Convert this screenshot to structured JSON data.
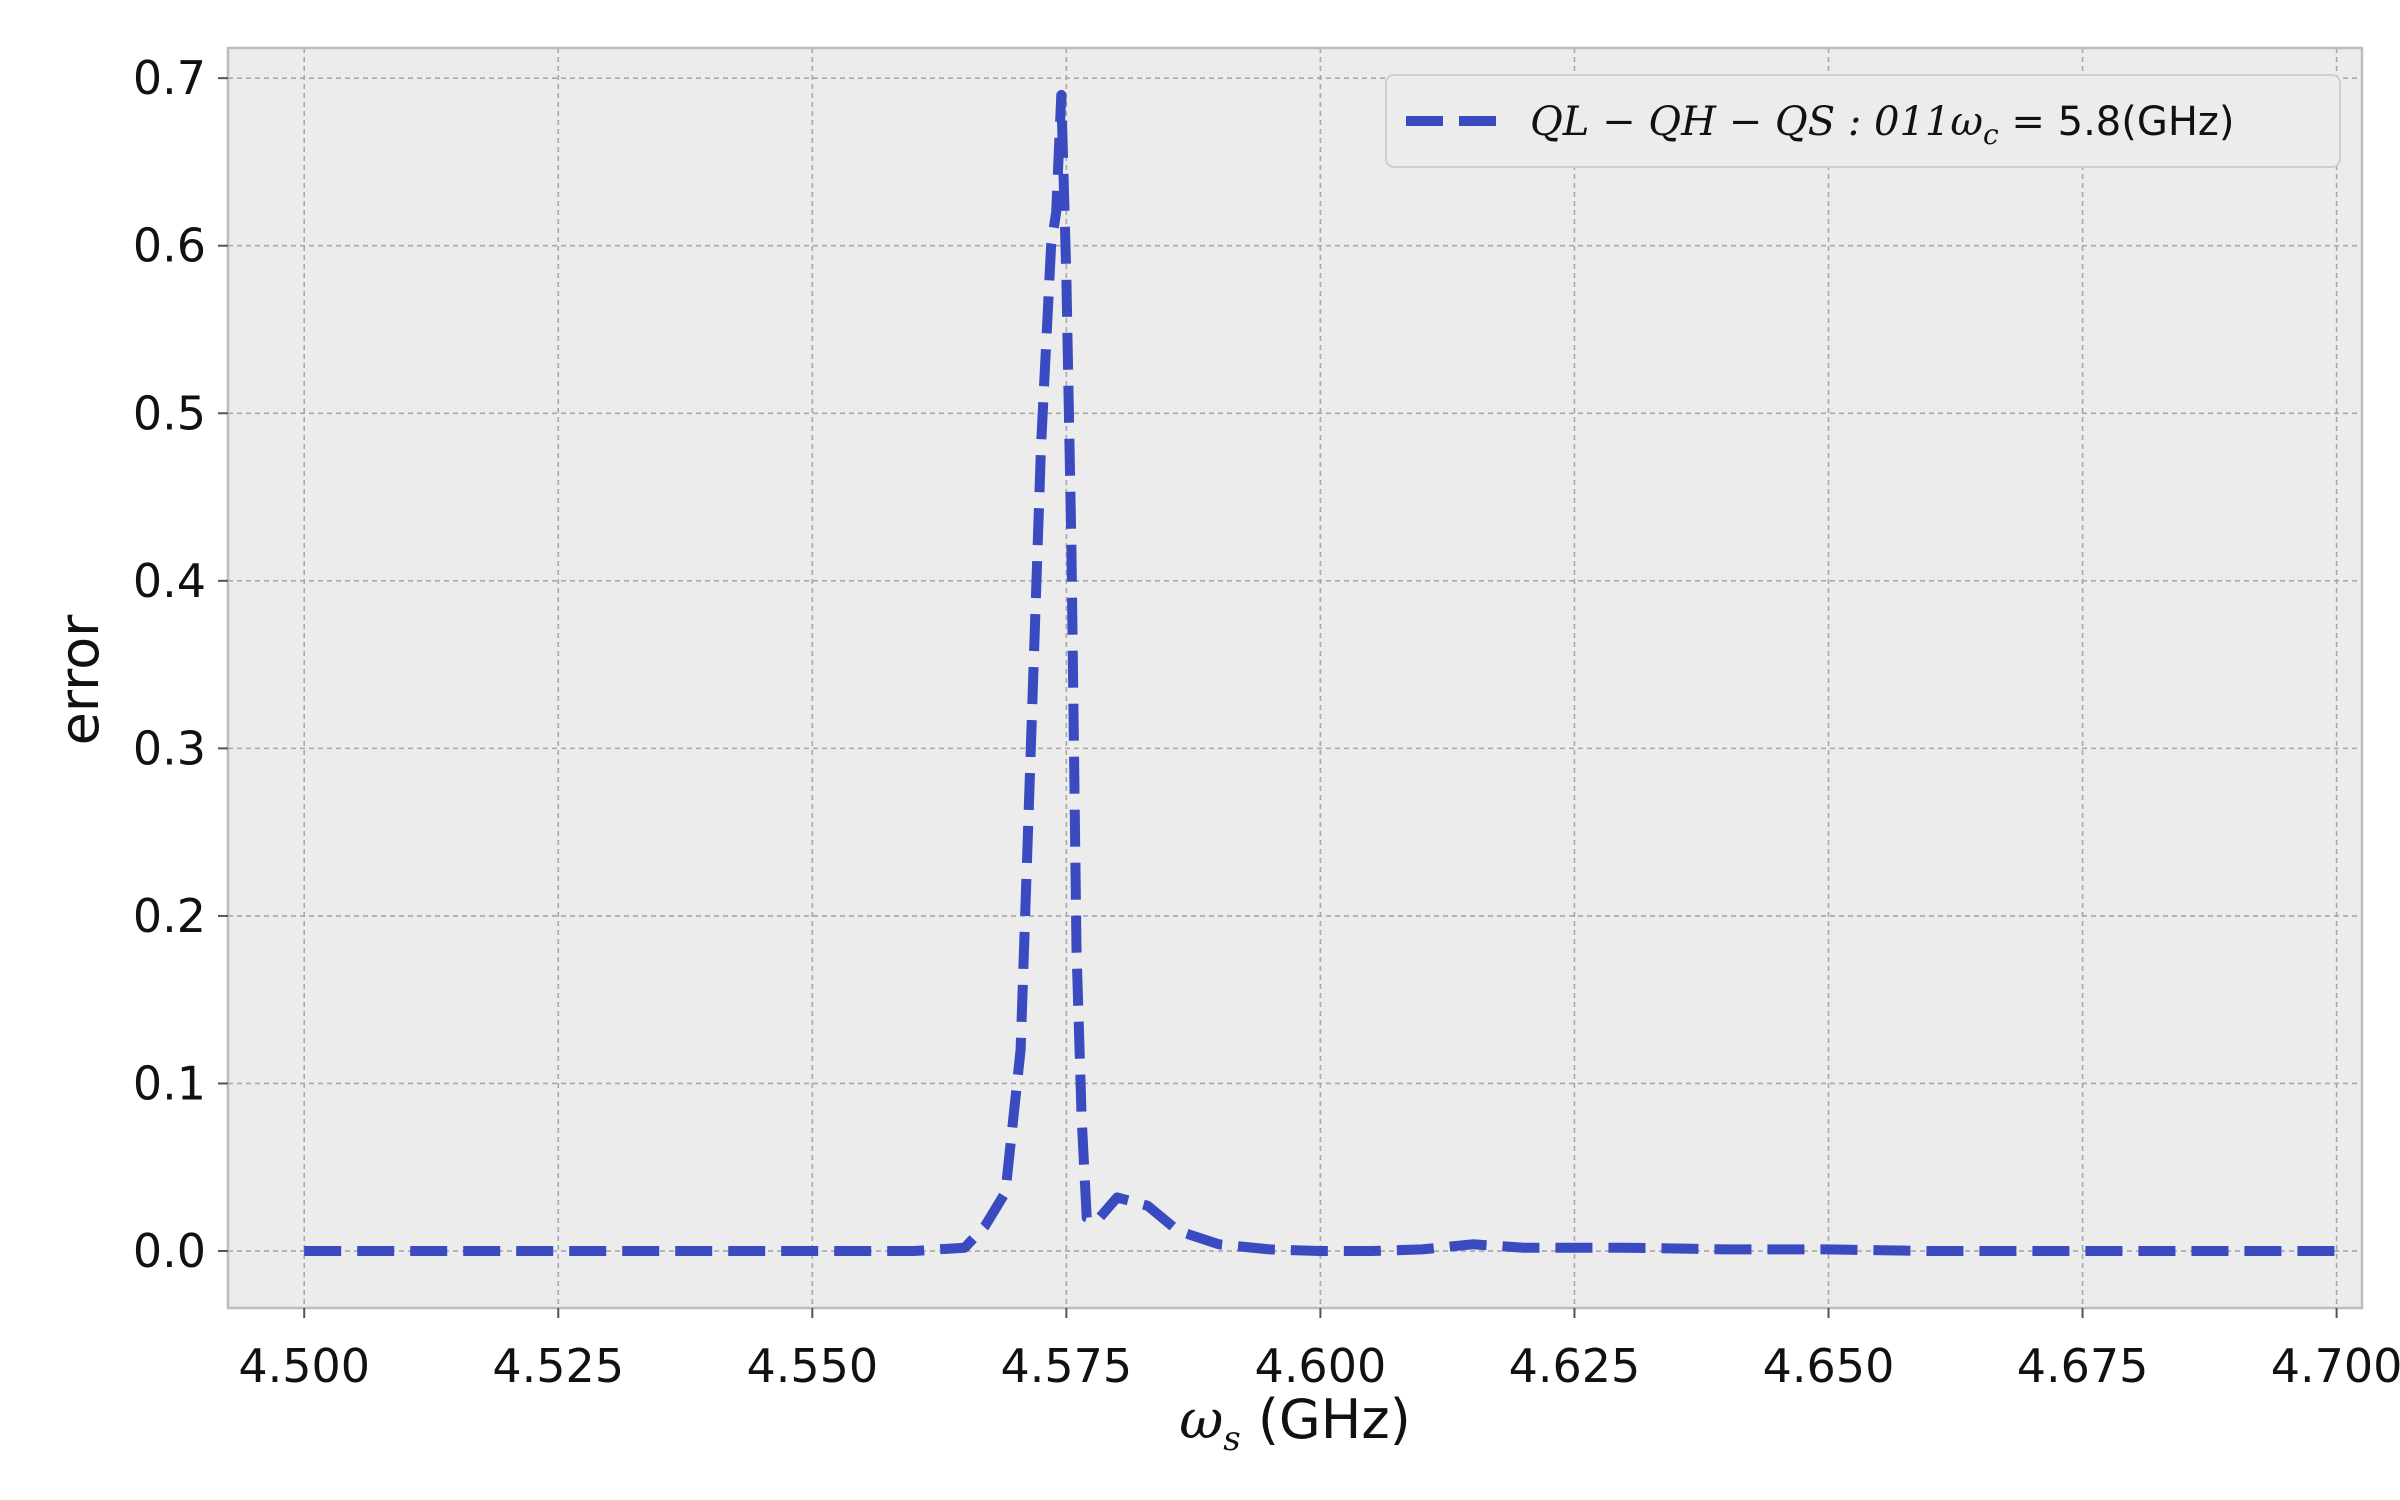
{
  "chart_data": {
    "type": "line",
    "xlabel_math": "ω",
    "xlabel_sub": "s",
    "xlabel_unit": "(GHz)",
    "ylabel": "error",
    "xlim": [
      4.4925,
      4.7025
    ],
    "ylim": [
      -0.034,
      0.718
    ],
    "xticks": [
      "4.500",
      "4.525",
      "4.550",
      "4.575",
      "4.600",
      "4.625",
      "4.650",
      "4.675",
      "4.700"
    ],
    "xtick_values": [
      4.5,
      4.525,
      4.55,
      4.575,
      4.6,
      4.625,
      4.65,
      4.675,
      4.7
    ],
    "yticks": [
      "0.0",
      "0.1",
      "0.2",
      "0.3",
      "0.4",
      "0.5",
      "0.6",
      "0.7"
    ],
    "ytick_values": [
      0.0,
      0.1,
      0.2,
      0.3,
      0.4,
      0.5,
      0.6,
      0.7
    ],
    "grid": true,
    "legend_position": "top-right",
    "series": [
      {
        "name_math": "QL − QH − QS : 011ω",
        "name_sub": "c",
        "name_eq": " = ",
        "name_tail": "5.8(GHz)",
        "color": "#3a4ac0",
        "style": "dashed",
        "x": [
          4.5,
          4.51,
          4.52,
          4.53,
          4.54,
          4.55,
          4.56,
          4.565,
          4.567,
          4.569,
          4.5705,
          4.5715,
          4.5725,
          4.5735,
          4.574,
          4.5745,
          4.575,
          4.5755,
          4.576,
          4.5765,
          4.577,
          4.578,
          4.58,
          4.583,
          4.586,
          4.59,
          4.595,
          4.6,
          4.605,
          4.61,
          4.615,
          4.62,
          4.63,
          4.64,
          4.65,
          4.66,
          4.67,
          4.68,
          4.69,
          4.7
        ],
        "y": [
          0.0,
          0.0,
          0.0,
          0.0,
          0.0,
          0.0,
          0.0,
          0.002,
          0.015,
          0.035,
          0.12,
          0.3,
          0.48,
          0.6,
          0.62,
          0.69,
          0.58,
          0.42,
          0.18,
          0.08,
          0.02,
          0.018,
          0.032,
          0.027,
          0.012,
          0.004,
          0.001,
          0.0,
          0.0,
          0.001,
          0.004,
          0.002,
          0.002,
          0.001,
          0.001,
          0.0,
          0.0,
          0.0,
          0.0,
          0.0
        ]
      }
    ]
  },
  "colors": {
    "plot_background": "#ececed",
    "grid": "#a8a8a8",
    "spine": "#bdbdbd"
  }
}
